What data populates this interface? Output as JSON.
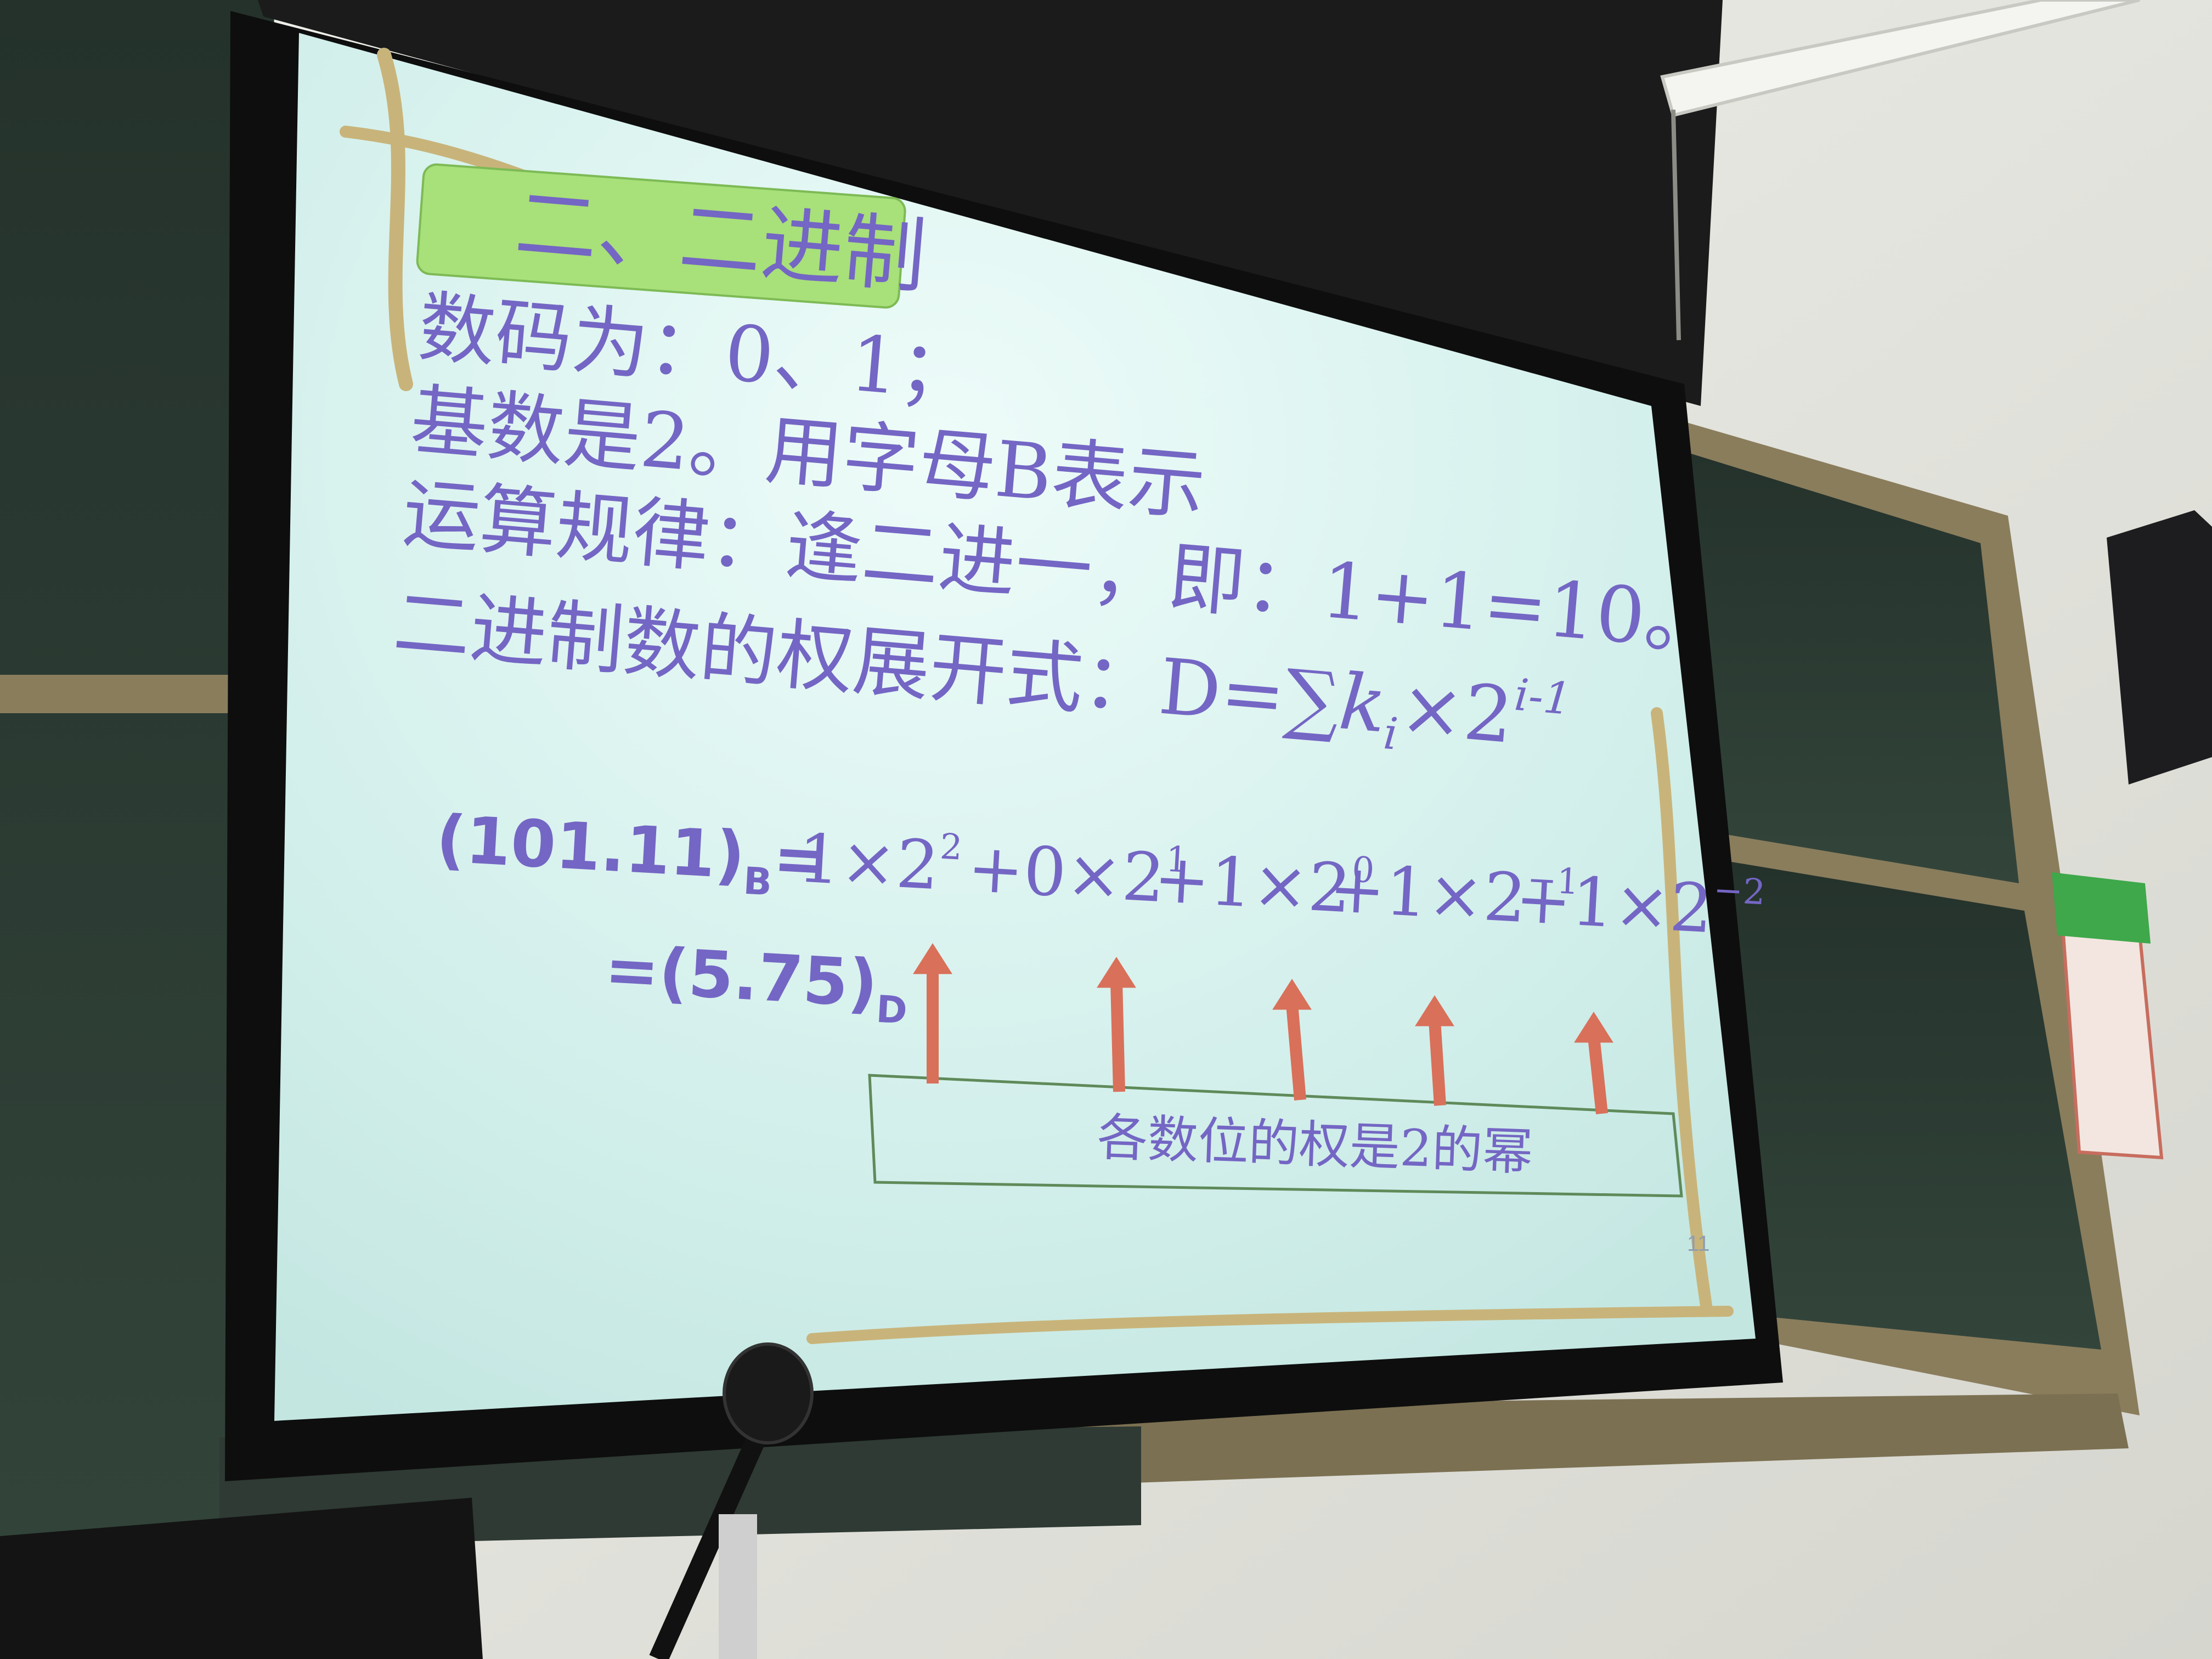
{
  "slide": {
    "title": "二、二进制",
    "line1": "数码为：0、1；",
    "line2": "基数是2。用字母B表示",
    "line3": "运算规律：逢二进一，即：1+1=10。",
    "line4_prefix": "二进制数的权展开式：D=",
    "line4_sum": "∑",
    "line4_k": "k",
    "line4_ksub": "i",
    "line4_times": "×2",
    "line4_exp": "i-1",
    "example_lhs": "(101.11)",
    "example_lhs_sub": "B",
    "example_eq": "=",
    "terms": [
      {
        "text": "1×2",
        "exp": "2"
      },
      {
        "text": "+0×2",
        "exp": "1"
      },
      {
        "text": "+1×2",
        "exp": "0"
      },
      {
        "text": "+1×2",
        "exp": "−1"
      },
      {
        "text": "+1×2",
        "exp": "−2"
      }
    ],
    "result": "=(5.75)",
    "result_sub": "D",
    "callout": "各数位的权是2的幂",
    "page_number": "11"
  },
  "colors": {
    "slide_bg": "#d8f2ee",
    "text": "#7466c4",
    "title_box": "#a8e07a",
    "arrow": "#d9705a",
    "border_ornament": "#c8b47a",
    "chalkboard": "#2f3e36",
    "wall": "#e9e9e4"
  }
}
